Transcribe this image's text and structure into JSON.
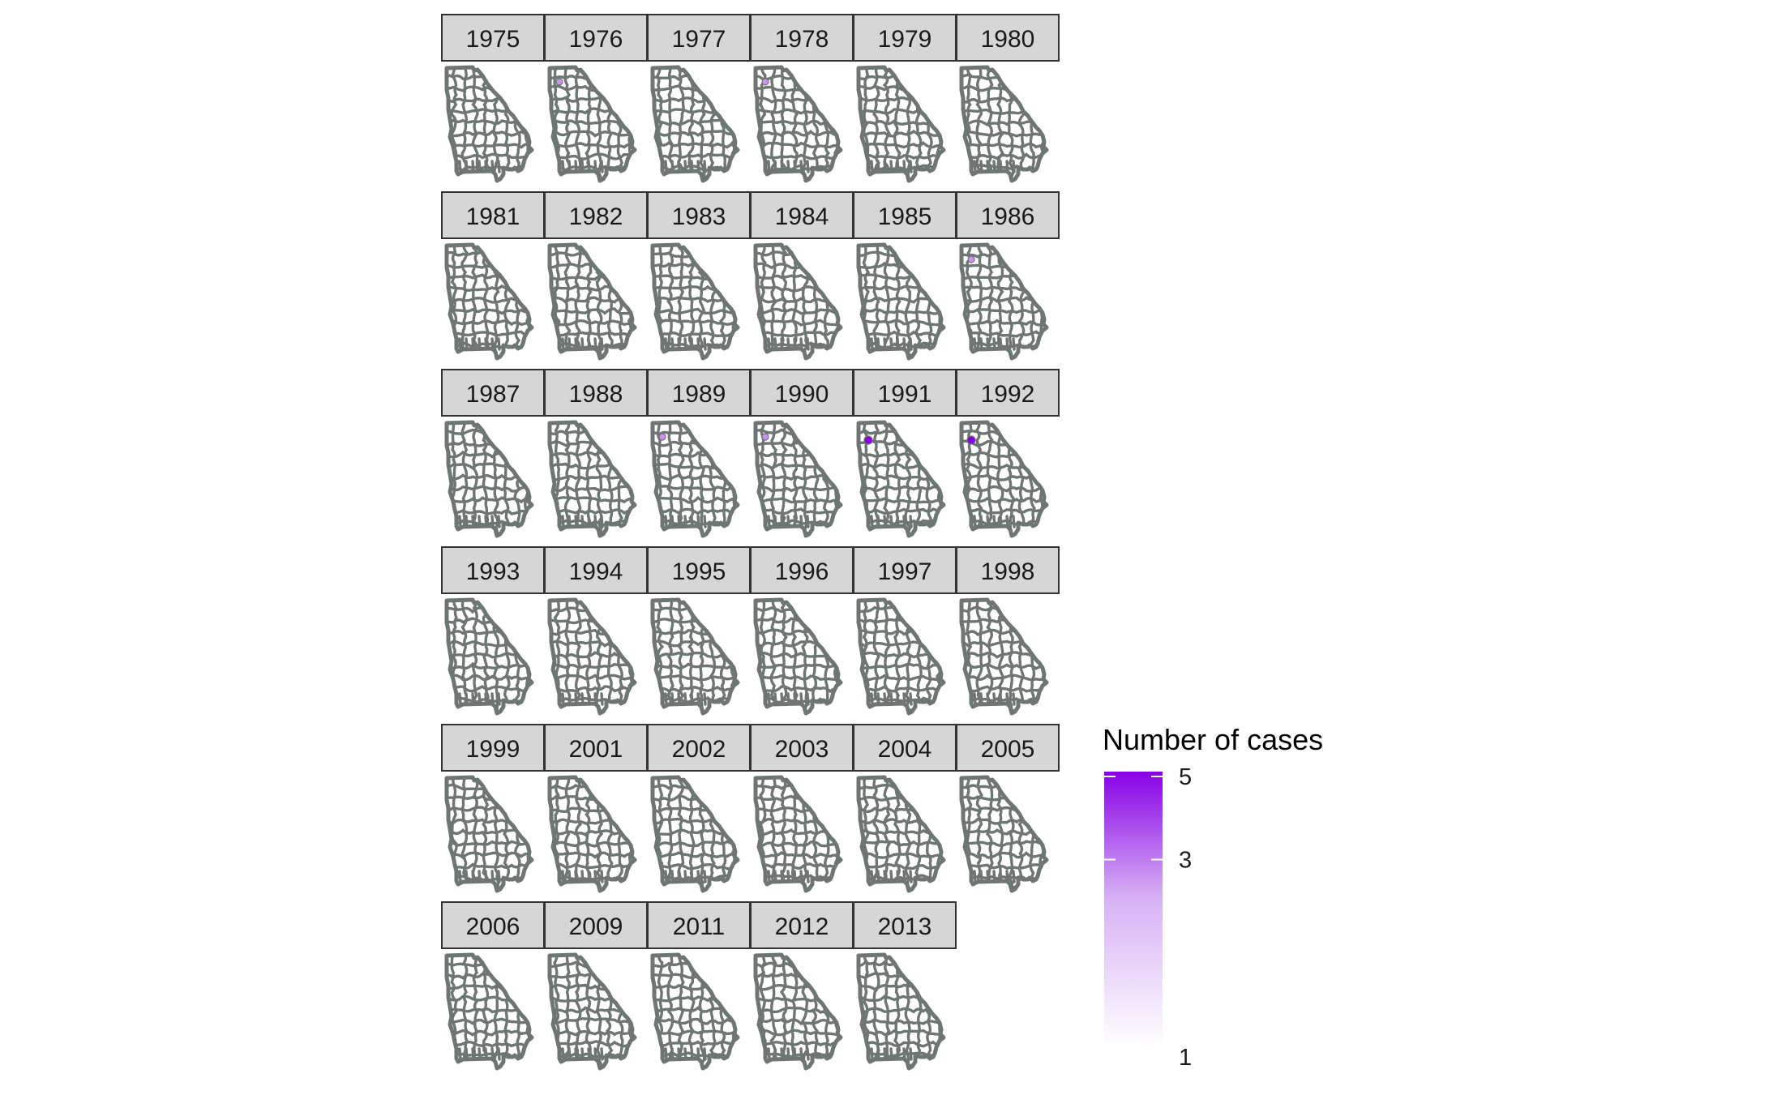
{
  "chart_data": {
    "type": "heatmap",
    "subtype": "faceted choropleth map (Georgia counties)",
    "facets": [
      "1975",
      "1976",
      "1977",
      "1978",
      "1979",
      "1980",
      "1981",
      "1982",
      "1983",
      "1984",
      "1985",
      "1986",
      "1987",
      "1988",
      "1989",
      "1990",
      "1991",
      "1992",
      "1993",
      "1994",
      "1995",
      "1996",
      "1997",
      "1998",
      "1999",
      "2001",
      "2002",
      "2003",
      "2004",
      "2005",
      "2006",
      "2009",
      "2011",
      "2012",
      "2013"
    ],
    "facet_columns": 6,
    "legend": {
      "title": "Number of cases",
      "ticks": [
        "5",
        "3",
        "1"
      ],
      "tick_values": [
        5,
        3,
        1
      ],
      "range": [
        1,
        5
      ],
      "scale": "log",
      "low_color": "#ffffff",
      "high_color": "#8800e6",
      "placement": "right"
    },
    "highlighted_counties": [
      {
        "facet": "1976",
        "value": 2
      },
      {
        "facet": "1978",
        "value": 2
      },
      {
        "facet": "1986",
        "value": 2
      },
      {
        "facet": "1989",
        "value": 2
      },
      {
        "facet": "1990",
        "value": 2
      },
      {
        "facet": "1991",
        "value": 5
      },
      {
        "facet": "1992",
        "value": 5
      }
    ],
    "colors": {
      "county_border": "#6e7673",
      "county_fill": "#ffffff",
      "strip_fill": "#d6d6d6",
      "strip_border": "#333333"
    }
  }
}
